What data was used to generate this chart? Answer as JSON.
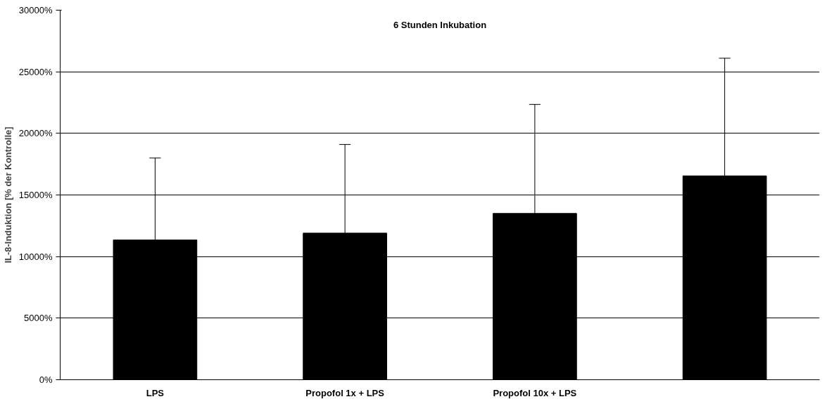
{
  "chart_data": {
    "type": "bar",
    "title": "6 Stunden Inkubation",
    "ylabel": "IL-8-Induktion [% der Kontrolle]",
    "categories": [
      "LPS",
      "Propofol 1x + LPS",
      "Propofol 10x + LPS",
      null
    ],
    "values": [
      11350,
      11900,
      13500,
      16550
    ],
    "errors": [
      [
        11350,
        18000
      ],
      [
        11900,
        19100
      ],
      [
        13500,
        22350
      ],
      [
        16550,
        26100
      ]
    ],
    "color": "#000000",
    "ylim": [
      0,
      30000
    ],
    "yticks": [
      {
        "value": 0,
        "label": "0%"
      },
      {
        "value": 5000,
        "label": "5000%"
      },
      {
        "value": 10000,
        "label": "10000%"
      },
      {
        "value": 15000,
        "label": "15000%"
      },
      {
        "value": 20000,
        "label": "20000%"
      },
      {
        "value": 25000,
        "label": "25000%"
      },
      {
        "value": 30000,
        "label": "30000%"
      }
    ],
    "grid": "y"
  }
}
